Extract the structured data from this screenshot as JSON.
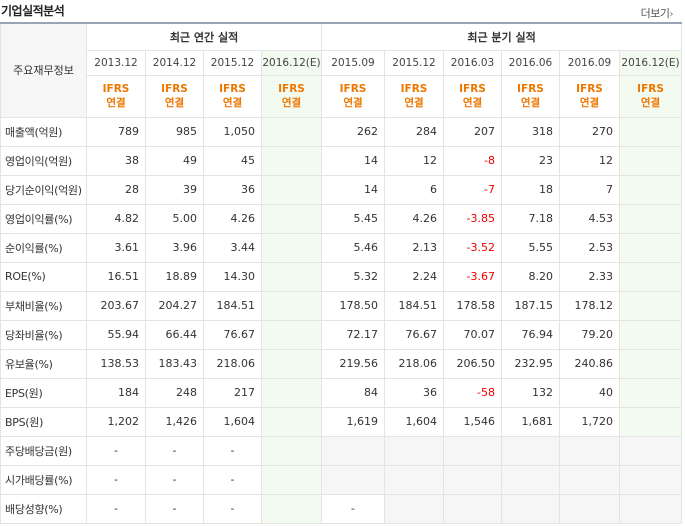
{
  "header": {
    "title": "기업실적분석",
    "more_label": "더보기",
    "more_arrow": "›"
  },
  "table": {
    "corner_label": "주요재무정보",
    "annual_group": "최근 연간 실적",
    "quarter_group": "최근 분기 실적",
    "annual_periods": [
      "2013.12",
      "2014.12",
      "2015.12",
      "2016.12(E)"
    ],
    "quarter_periods": [
      "2015.09",
      "2015.12",
      "2016.03",
      "2016.06",
      "2016.09",
      "2016.12(E)"
    ],
    "ifrs_top": "IFRS",
    "ifrs_bottom": "연결",
    "rows": [
      {
        "label": "매출액(억원)",
        "annual": [
          "789",
          "985",
          "1,050",
          ""
        ],
        "quarter": [
          "262",
          "284",
          "207",
          "318",
          "270",
          ""
        ]
      },
      {
        "label": "영업이익(억원)",
        "annual": [
          "38",
          "49",
          "45",
          ""
        ],
        "quarter": [
          "14",
          "12",
          "-8",
          "23",
          "12",
          ""
        ]
      },
      {
        "label": "당기순이익(억원)",
        "annual": [
          "28",
          "39",
          "36",
          ""
        ],
        "quarter": [
          "14",
          "6",
          "-7",
          "18",
          "7",
          ""
        ]
      },
      {
        "label": "영업이익률(%)",
        "annual": [
          "4.82",
          "5.00",
          "4.26",
          ""
        ],
        "quarter": [
          "5.45",
          "4.26",
          "-3.85",
          "7.18",
          "4.53",
          ""
        ]
      },
      {
        "label": "순이익률(%)",
        "annual": [
          "3.61",
          "3.96",
          "3.44",
          ""
        ],
        "quarter": [
          "5.46",
          "2.13",
          "-3.52",
          "5.55",
          "2.53",
          ""
        ]
      },
      {
        "label": "ROE(%)",
        "annual": [
          "16.51",
          "18.89",
          "14.30",
          ""
        ],
        "quarter": [
          "5.32",
          "2.24",
          "-3.67",
          "8.20",
          "2.33",
          ""
        ]
      },
      {
        "label": "부채비율(%)",
        "annual": [
          "203.67",
          "204.27",
          "184.51",
          ""
        ],
        "quarter": [
          "178.50",
          "184.51",
          "178.58",
          "187.15",
          "178.12",
          ""
        ]
      },
      {
        "label": "당좌비율(%)",
        "annual": [
          "55.94",
          "66.44",
          "76.67",
          ""
        ],
        "quarter": [
          "72.17",
          "76.67",
          "70.07",
          "76.94",
          "79.20",
          ""
        ]
      },
      {
        "label": "유보율(%)",
        "annual": [
          "138.53",
          "183.43",
          "218.06",
          ""
        ],
        "quarter": [
          "219.56",
          "218.06",
          "206.50",
          "232.95",
          "240.86",
          ""
        ]
      },
      {
        "label": "EPS(원)",
        "annual": [
          "184",
          "248",
          "217",
          ""
        ],
        "quarter": [
          "84",
          "36",
          "-58",
          "132",
          "40",
          ""
        ]
      },
      {
        "label": "BPS(원)",
        "annual": [
          "1,202",
          "1,426",
          "1,604",
          ""
        ],
        "quarter": [
          "1,619",
          "1,604",
          "1,546",
          "1,681",
          "1,720",
          ""
        ]
      },
      {
        "label": "주당배당금(원)",
        "annual": [
          "-",
          "-",
          "-",
          ""
        ],
        "quarter": [
          "",
          "",
          "",
          "",
          "",
          ""
        ]
      },
      {
        "label": "시가배당률(%)",
        "annual": [
          "-",
          "-",
          "-",
          ""
        ],
        "quarter": [
          "",
          "",
          "",
          "",
          "",
          ""
        ]
      },
      {
        "label": "배당성향(%)",
        "annual": [
          "-",
          "-",
          "-",
          ""
        ],
        "quarter": [
          "-",
          "",
          "",
          "",
          "",
          ""
        ]
      }
    ]
  }
}
